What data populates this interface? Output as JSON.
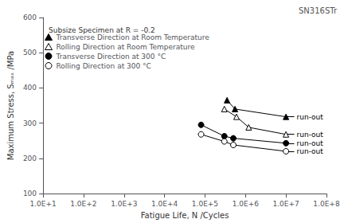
{
  "chart_data": {
    "type": "line",
    "title": "SN316STr",
    "xlabel": "Fatigue Life, N /Cycles",
    "ylabel": "Maximum Stress, Sₘₐₓ /MPa",
    "log": "x",
    "xlim": [
      10,
      100000000.0
    ],
    "ylim": [
      100,
      600
    ],
    "xticks": [
      {
        "value": 10.0,
        "label": "1.0E+1"
      },
      {
        "value": 100.0,
        "label": "1.0E+2"
      },
      {
        "value": 1000.0,
        "label": "1.0E+3"
      },
      {
        "value": 10000.0,
        "label": "1.0E+4"
      },
      {
        "value": 100000.0,
        "label": "1.0E+5"
      },
      {
        "value": 1000000.0,
        "label": "1.0E+6"
      },
      {
        "value": 10000000.0,
        "label": "1.0E+7"
      },
      {
        "value": 100000000.0,
        "label": "1.0E+8"
      }
    ],
    "yticks": [
      100,
      200,
      300,
      400,
      500,
      600
    ],
    "grid": false,
    "legend": "upper left",
    "legend_title": "Subsize Specimen at R = -0.2",
    "series": [
      {
        "name": "Transverse Direction at Room Temperature",
        "color": "#000000",
        "marker": "triangle",
        "x": [
          350000.0,
          550000.0,
          10000000.0
        ],
        "values": [
          365,
          340,
          318
        ]
      },
      {
        "name": "Rolling Direction at Room Temperature",
        "color": "#000000",
        "marker": "triangle-open",
        "x": [
          300000.0,
          600000.0,
          1200000.0,
          10000000.0
        ],
        "values": [
          340,
          318,
          288,
          268
        ]
      },
      {
        "name": "Transverse Direction at 300 °C",
        "color": "#000000",
        "marker": "circle",
        "x": [
          80000.0,
          300000.0,
          500000.0,
          10000000.0
        ],
        "values": [
          295,
          263,
          257,
          243
        ]
      },
      {
        "name": "Rolling Direction at 300 °C",
        "color": "#000000",
        "marker": "circle-open",
        "x": [
          80000.0,
          300000.0,
          500000.0,
          10000000.0
        ],
        "values": [
          268,
          248,
          238,
          220
        ]
      }
    ],
    "annotations": [
      {
        "text": "run-out",
        "x": 10000000.0,
        "y": 318
      },
      {
        "text": "run-out",
        "x": 10000000.0,
        "y": 268
      },
      {
        "text": "run-out",
        "x": 10000000.0,
        "y": 243
      },
      {
        "text": "run-out",
        "x": 10000000.0,
        "y": 220
      }
    ]
  }
}
